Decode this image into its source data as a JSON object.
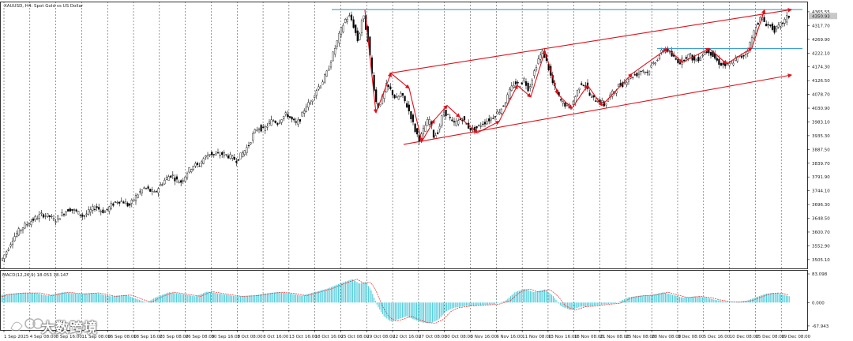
{
  "chart_data": {
    "type": "candlestick",
    "title": "XAUUSD, H4:  Spot Gold vs US Dollar",
    "symbol": "XAUUSD",
    "timeframe": "H4",
    "description": "Spot Gold vs US Dollar",
    "x_tick_labels": [
      "1 Sep 2025",
      "4 Sep 08:00",
      "8 Sep 16:00",
      "11 Sep 08:00",
      "16 Sep 08:00",
      "18 Sep 16:00",
      "23 Sep 08:00",
      "26 Sep 08:00",
      "30 Sep 16:00",
      "3 Oct 08:00",
      "8 Oct 16:00",
      "13 Oct 16:00",
      "18 Oct 16:00",
      "25 Oct 08:00",
      "29 Oct 08:00",
      "22 Oct 16:00",
      "27 Oct 08:00",
      "30 Oct 08:00",
      "3 Nov 16:00",
      "6 Nov 16:00",
      "11 Nov 08:00",
      "13 Nov 16:00",
      "18 Nov 08:00",
      "21 Nov 08:00",
      "25 Nov 08:00",
      "28 Nov 08:00",
      "3 Dec 08:00",
      "5 Dec 16:00",
      "10 Dec 08:00",
      "15 Dec 08:00",
      "19 Dec 08:00"
    ],
    "price_tick_labels": [
      "4365.55",
      "4317.70",
      "4269.90",
      "4222.10",
      "4174.30",
      "4126.50",
      "4078.70",
      "4030.90",
      "3983.10",
      "3935.30",
      "3887.50",
      "3839.70",
      "3791.90",
      "3744.10",
      "3696.30",
      "3648.50",
      "3600.70",
      "3552.90",
      "3505.10"
    ],
    "current_price": "4350.93",
    "y_range": [
      3480,
      4390
    ],
    "waypoints": [
      [
        0,
        3495
      ],
      [
        6,
        3510
      ],
      [
        12,
        3540
      ],
      [
        18,
        3575
      ],
      [
        25,
        3600
      ],
      [
        32,
        3620
      ],
      [
        40,
        3635
      ],
      [
        48,
        3650
      ],
      [
        56,
        3662
      ],
      [
        65,
        3655
      ],
      [
        72,
        3640
      ],
      [
        82,
        3665
      ],
      [
        90,
        3682
      ],
      [
        100,
        3670
      ],
      [
        108,
        3655
      ],
      [
        116,
        3672
      ],
      [
        124,
        3690
      ],
      [
        130,
        3675
      ],
      [
        136,
        3672
      ],
      [
        144,
        3695
      ],
      [
        152,
        3710
      ],
      [
        160,
        3705
      ],
      [
        166,
        3690
      ],
      [
        172,
        3715
      ],
      [
        178,
        3735
      ],
      [
        186,
        3755
      ],
      [
        192,
        3745
      ],
      [
        198,
        3735
      ],
      [
        206,
        3765
      ],
      [
        214,
        3790
      ],
      [
        220,
        3800
      ],
      [
        226,
        3780
      ],
      [
        232,
        3775
      ],
      [
        240,
        3810
      ],
      [
        248,
        3835
      ],
      [
        254,
        3830
      ],
      [
        260,
        3855
      ],
      [
        268,
        3875
      ],
      [
        274,
        3868
      ],
      [
        280,
        3870
      ],
      [
        286,
        3872
      ],
      [
        294,
        3862
      ],
      [
        302,
        3850
      ],
      [
        310,
        3875
      ],
      [
        318,
        3905
      ],
      [
        324,
        3945
      ],
      [
        330,
        3965
      ],
      [
        336,
        3955
      ],
      [
        342,
        3975
      ],
      [
        348,
        3990
      ],
      [
        354,
        3980
      ],
      [
        360,
        4000
      ],
      [
        366,
        4010
      ],
      [
        372,
        3990
      ],
      [
        378,
        3975
      ],
      [
        384,
        4000
      ],
      [
        390,
        4040
      ],
      [
        396,
        4050
      ],
      [
        402,
        4090
      ],
      [
        410,
        4120
      ],
      [
        416,
        4150
      ],
      [
        422,
        4200
      ],
      [
        428,
        4250
      ],
      [
        434,
        4300
      ],
      [
        440,
        4340
      ],
      [
        446,
        4350
      ],
      [
        451,
        4310
      ],
      [
        456,
        4260
      ],
      [
        462,
        4360
      ],
      [
        468,
        4280
      ],
      [
        474,
        4140
      ],
      [
        480,
        4030
      ],
      [
        486,
        4060
      ],
      [
        492,
        4110
      ],
      [
        498,
        4090
      ],
      [
        504,
        4060
      ],
      [
        510,
        4080
      ],
      [
        516,
        4050
      ],
      [
        522,
        4010
      ],
      [
        528,
        3955
      ],
      [
        534,
        3920
      ],
      [
        540,
        3965
      ],
      [
        546,
        3995
      ],
      [
        552,
        3930
      ],
      [
        558,
        3955
      ],
      [
        564,
        4020
      ],
      [
        570,
        4005
      ],
      [
        576,
        3975
      ],
      [
        582,
        3985
      ],
      [
        588,
        3995
      ],
      [
        594,
        3970
      ],
      [
        600,
        3955
      ],
      [
        606,
        3962
      ],
      [
        612,
        3975
      ],
      [
        618,
        3985
      ],
      [
        624,
        3995
      ],
      [
        630,
        4010
      ],
      [
        636,
        4025
      ],
      [
        642,
        4050
      ],
      [
        648,
        4090
      ],
      [
        654,
        4120
      ],
      [
        660,
        4110
      ],
      [
        666,
        4130
      ],
      [
        672,
        4095
      ],
      [
        678,
        4150
      ],
      [
        684,
        4200
      ],
      [
        690,
        4228
      ],
      [
        696,
        4180
      ],
      [
        702,
        4120
      ],
      [
        708,
        4080
      ],
      [
        714,
        4050
      ],
      [
        720,
        4040
      ],
      [
        726,
        4035
      ],
      [
        732,
        4080
      ],
      [
        738,
        4120
      ],
      [
        744,
        4110
      ],
      [
        750,
        4070
      ],
      [
        756,
        4060
      ],
      [
        762,
        4058
      ],
      [
        768,
        4040
      ],
      [
        774,
        4070
      ],
      [
        780,
        4090
      ],
      [
        786,
        4110
      ],
      [
        792,
        4115
      ],
      [
        798,
        4135
      ],
      [
        804,
        4145
      ],
      [
        810,
        4150
      ],
      [
        816,
        4165
      ],
      [
        822,
        4155
      ],
      [
        828,
        4180
      ],
      [
        834,
        4200
      ],
      [
        840,
        4225
      ],
      [
        846,
        4240
      ],
      [
        852,
        4215
      ],
      [
        858,
        4200
      ],
      [
        864,
        4190
      ],
      [
        870,
        4210
      ],
      [
        876,
        4215
      ],
      [
        882,
        4195
      ],
      [
        888,
        4205
      ],
      [
        894,
        4225
      ],
      [
        900,
        4230
      ],
      [
        906,
        4210
      ],
      [
        912,
        4190
      ],
      [
        918,
        4180
      ],
      [
        924,
        4178
      ],
      [
        930,
        4190
      ],
      [
        936,
        4205
      ],
      [
        942,
        4210
      ],
      [
        948,
        4225
      ],
      [
        954,
        4270
      ],
      [
        960,
        4320
      ],
      [
        966,
        4345
      ],
      [
        972,
        4325
      ],
      [
        978,
        4315
      ],
      [
        984,
        4300
      ],
      [
        990,
        4318
      ],
      [
        996,
        4335
      ],
      [
        1000,
        4350
      ]
    ],
    "horizontal_lines": [
      {
        "from_x": 420,
        "to_x": 1016,
        "price": 4373
      },
      {
        "from_x": 832,
        "to_x": 1016,
        "price": 4238
      }
    ],
    "channel_lines": [
      {
        "x1": 493,
        "y1": 4152,
        "x2": 1002,
        "y2": 4373
      },
      {
        "x1": 511,
        "y1": 3905,
        "x2": 1002,
        "y2": 4146
      }
    ],
    "zigzag": [
      [
        462,
        4372
      ],
      [
        476,
        4015
      ],
      [
        495,
        4152
      ],
      [
        518,
        4100
      ],
      [
        534,
        3915
      ],
      [
        550,
        3990
      ],
      [
        566,
        4040
      ],
      [
        582,
        4000
      ],
      [
        604,
        3945
      ],
      [
        632,
        3985
      ],
      [
        655,
        4110
      ],
      [
        672,
        4070
      ],
      [
        690,
        4230
      ],
      [
        706,
        4080
      ],
      [
        724,
        4030
      ],
      [
        744,
        4110
      ],
      [
        762,
        4040
      ],
      [
        800,
        4150
      ],
      [
        845,
        4238
      ],
      [
        864,
        4190
      ],
      [
        898,
        4238
      ],
      [
        920,
        4185
      ],
      [
        952,
        4240
      ],
      [
        968,
        4372
      ]
    ],
    "macd": {
      "label": "MACD(12,26,9) 18.053 18.147",
      "axis_labels": [
        "83.098",
        "0.000",
        "-67.943"
      ],
      "range": [
        -75,
        90
      ],
      "values": [
        [
          0,
          22
        ],
        [
          25,
          28
        ],
        [
          45,
          28
        ],
        [
          60,
          20
        ],
        [
          80,
          30
        ],
        [
          100,
          25
        ],
        [
          120,
          28
        ],
        [
          140,
          18
        ],
        [
          160,
          22
        ],
        [
          176,
          8
        ],
        [
          186,
          0
        ],
        [
          196,
          14
        ],
        [
          214,
          30
        ],
        [
          232,
          24
        ],
        [
          248,
          18
        ],
        [
          262,
          32
        ],
        [
          280,
          25
        ],
        [
          300,
          18
        ],
        [
          320,
          20
        ],
        [
          336,
          26
        ],
        [
          350,
          30
        ],
        [
          366,
          27
        ],
        [
          382,
          20
        ],
        [
          398,
          30
        ],
        [
          414,
          40
        ],
        [
          430,
          55
        ],
        [
          446,
          68
        ],
        [
          455,
          55
        ],
        [
          463,
          60
        ],
        [
          470,
          35
        ],
        [
          478,
          -10
        ],
        [
          486,
          -40
        ],
        [
          495,
          -55
        ],
        [
          505,
          -48
        ],
        [
          515,
          -40
        ],
        [
          525,
          -50
        ],
        [
          535,
          -58
        ],
        [
          545,
          -60
        ],
        [
          555,
          -50
        ],
        [
          565,
          -25
        ],
        [
          575,
          -15
        ],
        [
          590,
          -10
        ],
        [
          605,
          -8
        ],
        [
          625,
          -5
        ],
        [
          640,
          5
        ],
        [
          652,
          30
        ],
        [
          664,
          40
        ],
        [
          676,
          30
        ],
        [
          690,
          38
        ],
        [
          700,
          20
        ],
        [
          710,
          -10
        ],
        [
          722,
          -22
        ],
        [
          735,
          -12
        ],
        [
          750,
          -10
        ],
        [
          765,
          -5
        ],
        [
          780,
          -2
        ],
        [
          795,
          15
        ],
        [
          810,
          20
        ],
        [
          825,
          22
        ],
        [
          840,
          30
        ],
        [
          852,
          22
        ],
        [
          865,
          14
        ],
        [
          880,
          18
        ],
        [
          895,
          14
        ],
        [
          905,
          8
        ],
        [
          918,
          3
        ],
        [
          930,
          1
        ],
        [
          945,
          5
        ],
        [
          958,
          16
        ],
        [
          970,
          26
        ],
        [
          982,
          28
        ],
        [
          992,
          22
        ],
        [
          1000,
          18
        ]
      ]
    },
    "colors": {
      "up_candle": "#ffffff",
      "down_candle": "#000000",
      "wick": "#000000",
      "zigzag": "#e0101a",
      "channel": "#e0101a",
      "resistance": "#3d9fd8",
      "macd_hist": "#43c8d8",
      "macd_signal": "#e04040",
      "grid": "#333333"
    }
  },
  "watermark": {
    "text": "大数跨境"
  }
}
